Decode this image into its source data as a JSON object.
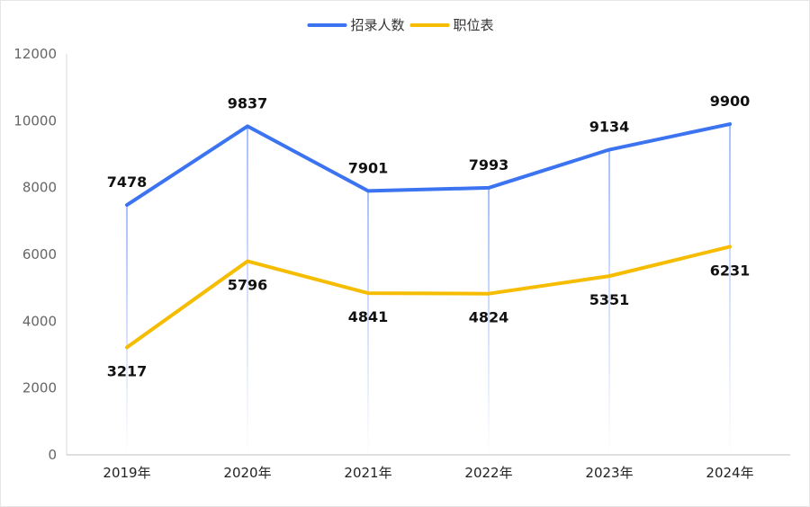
{
  "chart_data": {
    "type": "line",
    "categories": [
      "2019年",
      "2020年",
      "2021年",
      "2022年",
      "2023年",
      "2024年"
    ],
    "series": [
      {
        "name": "招录人数",
        "color": "#3b73f0",
        "values": [
          7478,
          9837,
          7901,
          7993,
          9134,
          9900
        ],
        "label_position": "above"
      },
      {
        "name": "职位表",
        "color": "#f5bc00",
        "values": [
          3217,
          5796,
          4841,
          4824,
          5351,
          6231
        ],
        "label_position": "below"
      }
    ],
    "ylim": [
      0,
      12000
    ],
    "yticks": [
      0,
      2000,
      4000,
      6000,
      8000,
      10000,
      12000
    ],
    "legend_position": "top-center",
    "grid": false,
    "drop_lines": true
  }
}
